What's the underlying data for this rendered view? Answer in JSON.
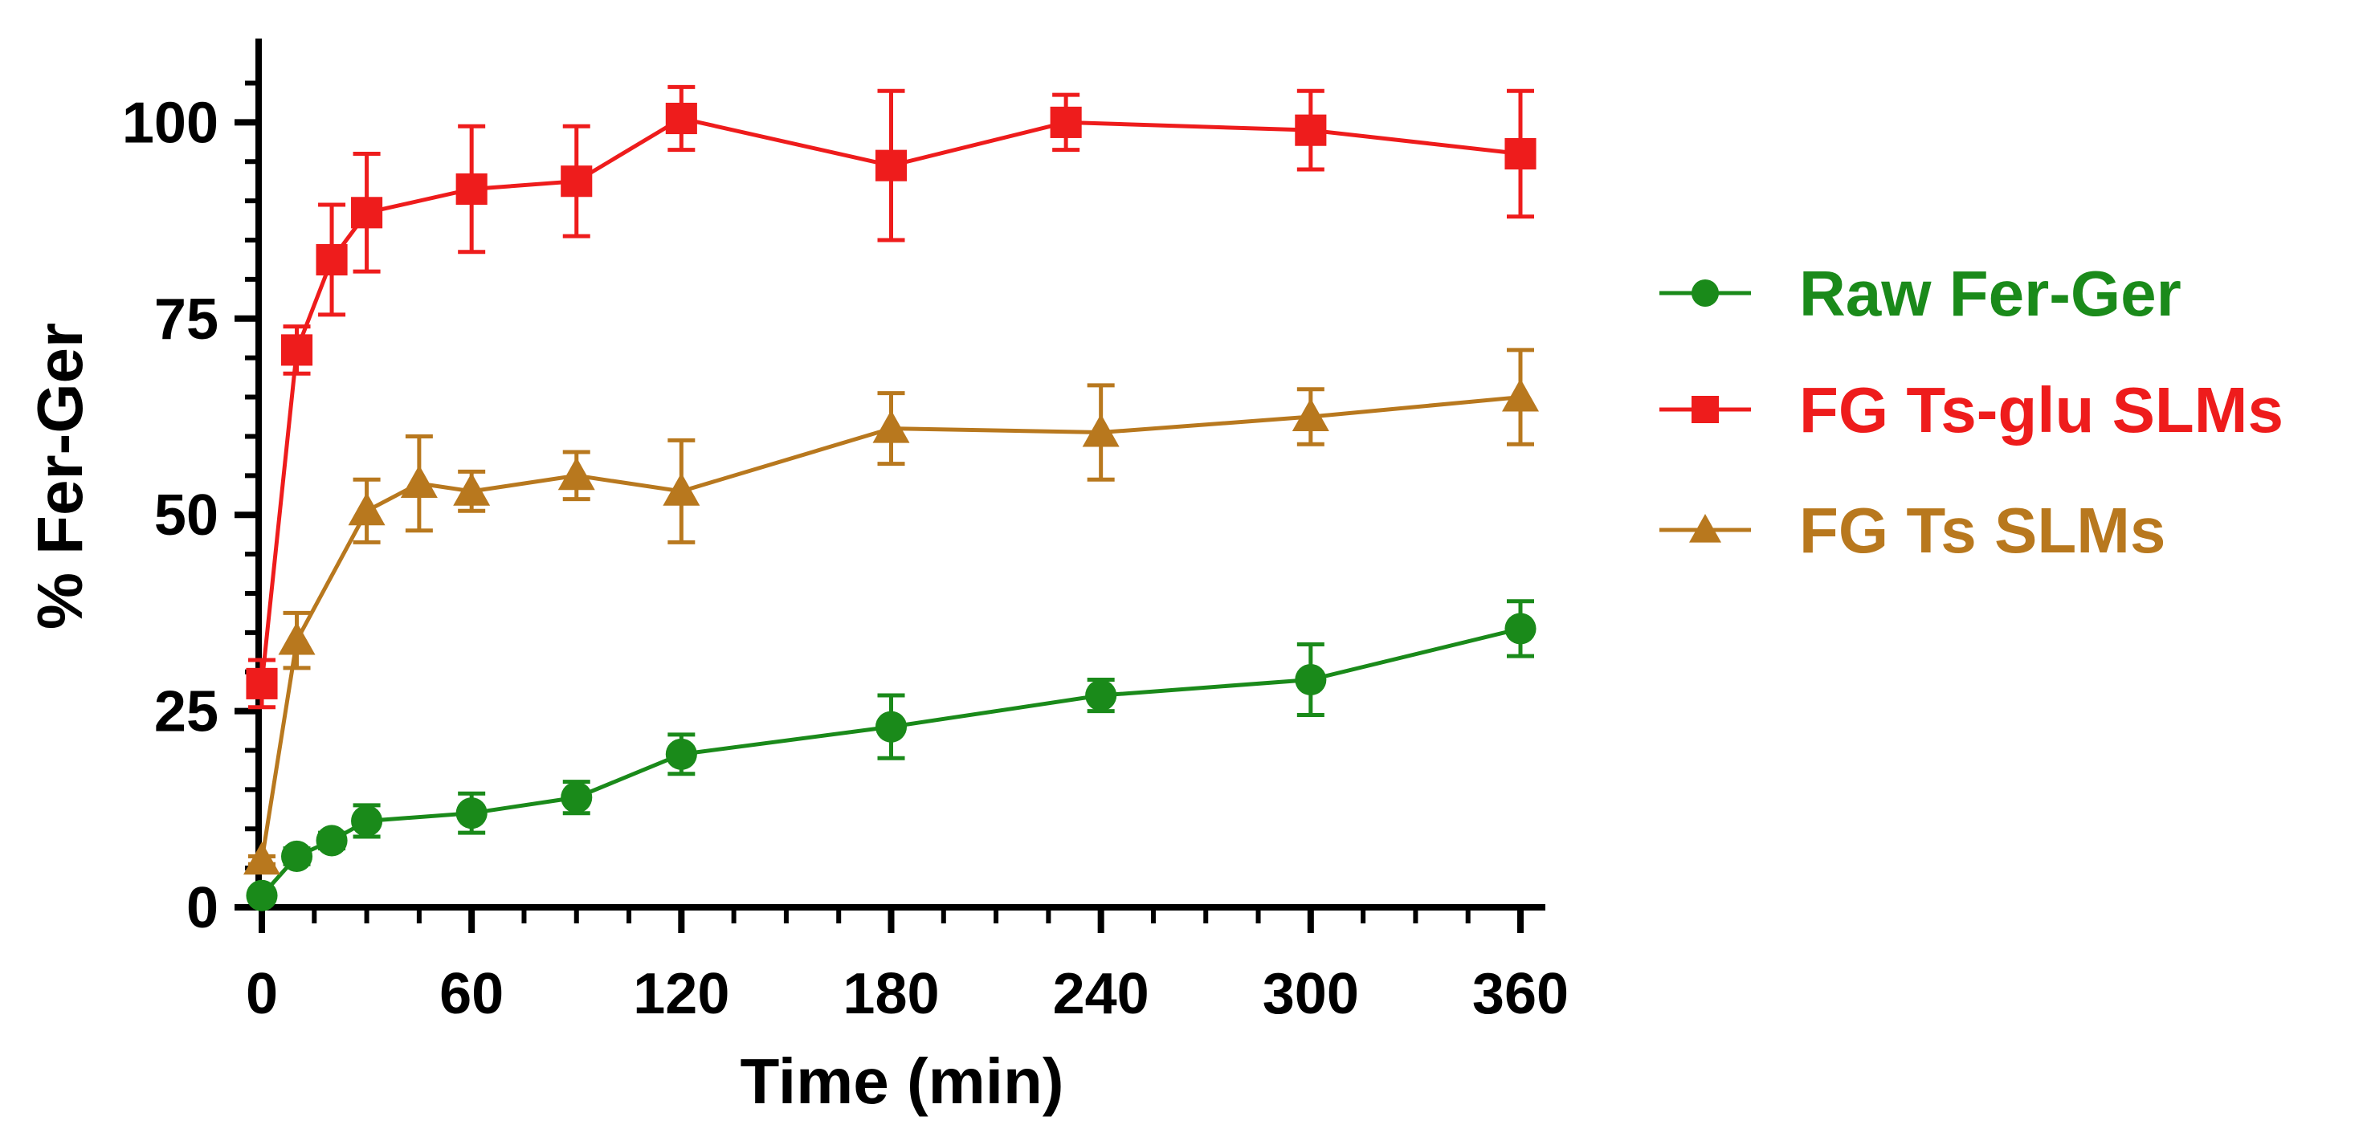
{
  "chart_data": {
    "type": "line",
    "title": "",
    "xlabel": "Time (min)",
    "ylabel": "% Fer-Ger",
    "xlim": [
      0,
      360
    ],
    "ylim": [
      0,
      110
    ],
    "xticks": [
      0,
      60,
      120,
      180,
      240,
      300,
      360
    ],
    "xtick_labels": [
      "0",
      "60",
      "120",
      "180",
      "240",
      "300",
      "360"
    ],
    "yticks": [
      0,
      25,
      50,
      75,
      100
    ],
    "ytick_labels": [
      "0",
      "25",
      "50",
      "75",
      "100"
    ],
    "grid": false,
    "legend_position": "right",
    "series": [
      {
        "name": "Raw Fer-Ger",
        "color": "#1a8a1a",
        "marker": "circle",
        "x": [
          0,
          10,
          20,
          30,
          60,
          90,
          120,
          180,
          240,
          300,
          360
        ],
        "y": [
          1.5,
          6.5,
          8.5,
          11,
          12,
          14,
          19.5,
          23,
          27,
          29,
          35.5
        ],
        "error": [
          0.5,
          1,
          1,
          2,
          2.5,
          2,
          2.5,
          4,
          2,
          4.5,
          3.5
        ]
      },
      {
        "name": "FG Ts-glu SLMs",
        "color": "#ee1c1c",
        "marker": "square",
        "x": [
          0,
          10,
          20,
          30,
          60,
          90,
          120,
          180,
          230,
          300,
          360
        ],
        "y": [
          28.5,
          71,
          82.5,
          88.5,
          91.5,
          92.5,
          100.5,
          94.5,
          100,
          99,
          96
        ],
        "error": [
          3,
          3,
          7,
          7.5,
          8,
          7,
          4,
          9.5,
          3.5,
          5,
          8
        ]
      },
      {
        "name": "FG Ts SLMs",
        "color": "#b8781e",
        "marker": "triangle",
        "x": [
          0,
          10,
          30,
          45,
          60,
          90,
          120,
          180,
          240,
          300,
          360
        ],
        "y": [
          6,
          34,
          50.5,
          54,
          53,
          55,
          53,
          61,
          60.5,
          62.5,
          65
        ],
        "error": [
          0.5,
          3.5,
          4,
          6,
          2.5,
          3,
          6.5,
          4.5,
          6,
          3.5,
          6
        ]
      }
    ]
  }
}
